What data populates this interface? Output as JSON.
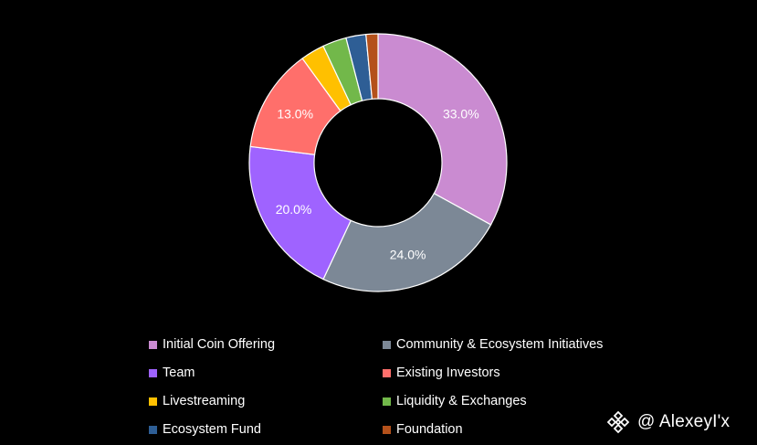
{
  "chart_data": {
    "type": "pie",
    "variant": "donut",
    "categories": [
      "Initial Coin Offering",
      "Community & Ecosystem Initiatives",
      "Team",
      "Existing Investors",
      "Livestreaming",
      "Liquidity & Exchanges",
      "Ecosystem Fund",
      "Foundation"
    ],
    "values": [
      33,
      24,
      20,
      13,
      3,
      3,
      2.5,
      1.5
    ],
    "data_labels": [
      "33.0%",
      "24.0%",
      "20.0%",
      "13.0%",
      "",
      "",
      "",
      ""
    ],
    "colors": [
      "#CA8BD1",
      "#7C8896",
      "#9F63FF",
      "#FF6F6B",
      "#FFC000",
      "#72B84A",
      "#2E5E95",
      "#B4511B"
    ],
    "legend_position": "bottom",
    "title": ""
  },
  "watermark": {
    "text": "@ AlexeyI'x",
    "icon": "binance-logo-icon"
  }
}
